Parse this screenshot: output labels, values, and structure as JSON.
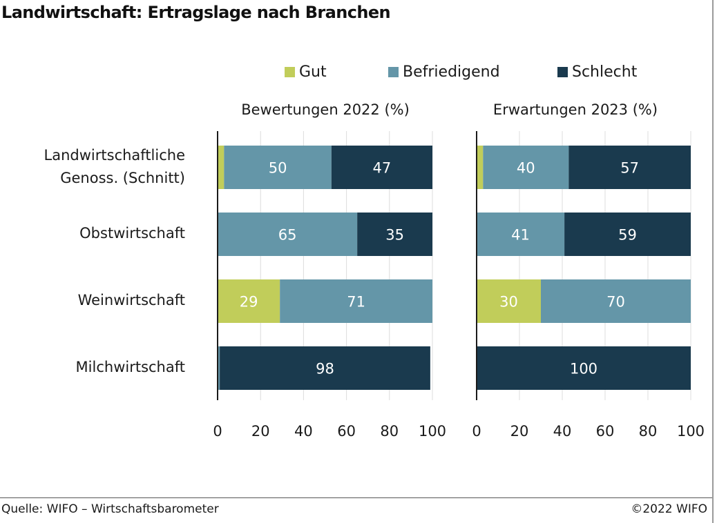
{
  "title": "Landwirtschaft: Ertragslage nach Branchen",
  "legend": [
    {
      "label": "Gut",
      "color": "#c1cd5a"
    },
    {
      "label": "Befriedigend",
      "color": "#6496a8"
    },
    {
      "label": "Schlecht",
      "color": "#1a3a4e"
    }
  ],
  "categories": [
    [
      "Landwirtschaftliche",
      "Genoss. (Schnitt)"
    ],
    [
      "Obstwirtschaft"
    ],
    [
      "Weinwirtschaft"
    ],
    [
      "Milchwirtschaft"
    ]
  ],
  "chart_data": [
    {
      "type": "bar",
      "orientation": "horizontal",
      "stacked": true,
      "title": "Bewertungen 2022 (%)",
      "categories": [
        "Landwirtschaftliche Genoss. (Schnitt)",
        "Obstwirtschaft",
        "Weinwirtschaft",
        "Milchwirtschaft"
      ],
      "series": [
        {
          "name": "Gut",
          "values": [
            3,
            0,
            29,
            0
          ]
        },
        {
          "name": "Befriedigend",
          "values": [
            50,
            65,
            71,
            1
          ]
        },
        {
          "name": "Schlecht",
          "values": [
            47,
            35,
            0,
            98
          ]
        }
      ],
      "data_labels": [
        [
          null,
          "50",
          "47"
        ],
        [
          null,
          "65",
          "35"
        ],
        [
          "29",
          "71",
          null
        ],
        [
          null,
          null,
          "98"
        ]
      ],
      "xlim": [
        0,
        100
      ],
      "xticks": [
        "0",
        "20",
        "40",
        "60",
        "80",
        "100"
      ],
      "grid": true
    },
    {
      "type": "bar",
      "orientation": "horizontal",
      "stacked": true,
      "title": "Erwartungen 2023 (%)",
      "categories": [
        "Landwirtschaftliche Genoss. (Schnitt)",
        "Obstwirtschaft",
        "Weinwirtschaft",
        "Milchwirtschaft"
      ],
      "series": [
        {
          "name": "Gut",
          "values": [
            3,
            0,
            30,
            0
          ]
        },
        {
          "name": "Befriedigend",
          "values": [
            40,
            41,
            70,
            0
          ]
        },
        {
          "name": "Schlecht",
          "values": [
            57,
            59,
            0,
            100
          ]
        }
      ],
      "data_labels": [
        [
          null,
          "40",
          "57"
        ],
        [
          null,
          "41",
          "59"
        ],
        [
          "30",
          "70",
          null
        ],
        [
          null,
          null,
          "100"
        ]
      ],
      "xlim": [
        0,
        100
      ],
      "xticks": [
        "0",
        "20",
        "40",
        "60",
        "80",
        "100"
      ],
      "grid": true
    }
  ],
  "footer": {
    "source": "Quelle: WIFO – Wirtschaftsbarometer",
    "copyright": "©2022 WIFO"
  }
}
